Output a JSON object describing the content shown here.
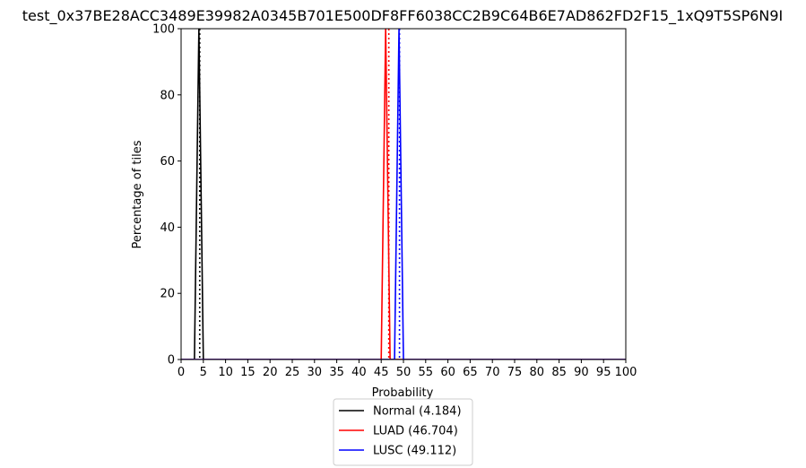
{
  "chart_data": {
    "type": "line",
    "title": "test_0x37BE28ACC3489E39982A0345B701E500DF8FF6038CC2B9C64B6E7AD862FD2F15_1xQ9T5SP6N9I",
    "xlabel": "Probability",
    "ylabel": "Percentage of tiles",
    "xlim": [
      0,
      100
    ],
    "ylim": [
      0,
      100
    ],
    "xticks": [
      0,
      5,
      10,
      15,
      20,
      25,
      30,
      35,
      40,
      45,
      50,
      55,
      60,
      65,
      70,
      75,
      80,
      85,
      90,
      95,
      100
    ],
    "yticks": [
      0,
      20,
      40,
      60,
      80,
      100
    ],
    "grid": false,
    "legend_position": "below-center",
    "series": [
      {
        "name": "Normal (4.184)",
        "color": "#000000",
        "mean": 4.184,
        "x": [
          0,
          3,
          4,
          5,
          100
        ],
        "y": [
          0,
          0,
          100,
          0,
          0
        ]
      },
      {
        "name": "LUAD (46.704)",
        "color": "#ff0000",
        "mean": 46.704,
        "x": [
          0,
          45,
          46,
          47,
          100
        ],
        "y": [
          0,
          0,
          100,
          0,
          0
        ]
      },
      {
        "name": "LUSC (49.112)",
        "color": "#0000ff",
        "mean": 49.112,
        "x": [
          0,
          48,
          49,
          50,
          100
        ],
        "y": [
          0,
          0,
          100,
          0,
          0
        ]
      }
    ]
  }
}
